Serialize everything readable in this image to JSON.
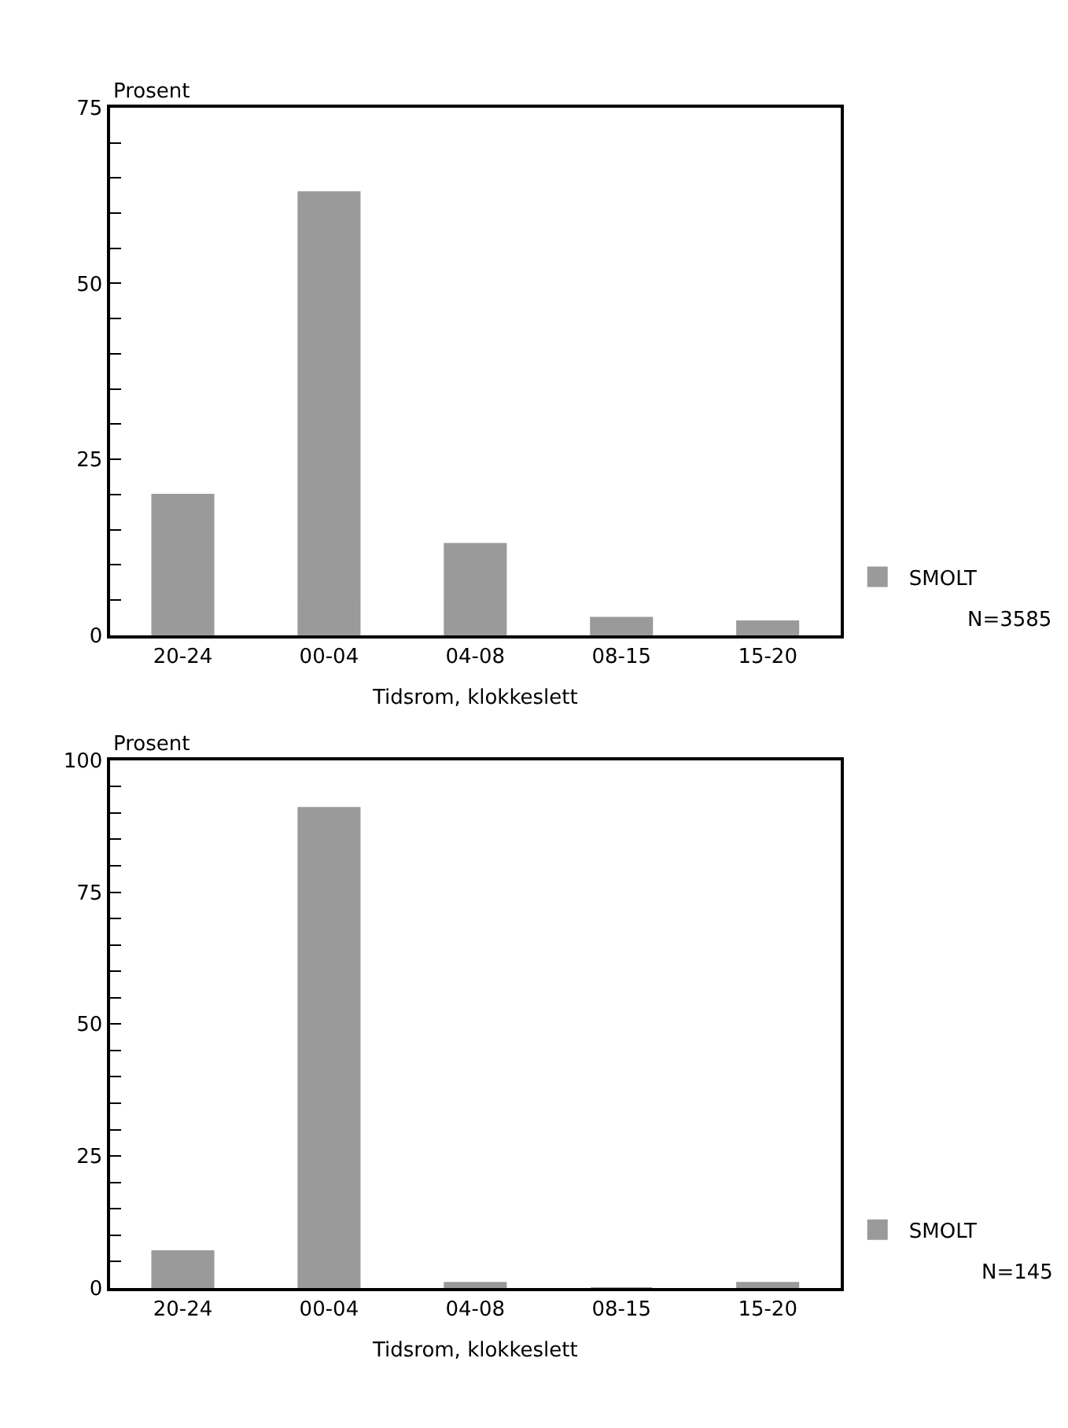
{
  "chart_data": [
    {
      "type": "bar",
      "ylabel": "Prosent",
      "xlabel": "Tidsrom, klokkeslett",
      "categories": [
        "20-24",
        "00-04",
        "04-08",
        "08-15",
        "15-20"
      ],
      "series": [
        {
          "name": "SMOLT",
          "color": "#9a9a9a",
          "values": [
            20,
            63,
            13,
            2.5,
            2
          ]
        }
      ],
      "annotations": [
        "N=3585"
      ],
      "ylim": [
        0,
        75
      ],
      "yticks": [
        0,
        {
          "value": 5,
          "label": null
        },
        {
          "value": 10,
          "label": null
        },
        {
          "value": 15,
          "label": null
        },
        {
          "value": 20,
          "label": null
        },
        25,
        {
          "value": 30,
          "label": null
        },
        {
          "value": 35,
          "label": null
        },
        {
          "value": 40,
          "label": null
        },
        {
          "value": 45,
          "label": null
        },
        50,
        {
          "value": 55,
          "label": null
        },
        {
          "value": 60,
          "label": null
        },
        {
          "value": 65,
          "label": null
        },
        {
          "value": 70,
          "label": null
        },
        75
      ],
      "legend": "bottom right"
    },
    {
      "type": "bar",
      "ylabel": "Prosent",
      "xlabel": "Tidsrom, klokkeslett",
      "categories": [
        "20-24",
        "00-04",
        "04-08",
        "08-15",
        "15-20"
      ],
      "series": [
        {
          "name": "SMOLT",
          "color": "#9a9a9a",
          "values": [
            7,
            91,
            1,
            0,
            1
          ]
        }
      ],
      "annotations": [
        "N=145"
      ],
      "ylim": [
        0,
        100
      ],
      "yticks": [
        0,
        {
          "value": 5,
          "label": null
        },
        {
          "value": 10,
          "label": null
        },
        {
          "value": 15,
          "label": null
        },
        {
          "value": 20,
          "label": null
        },
        25,
        {
          "value": 30,
          "label": null
        },
        {
          "value": 35,
          "label": null
        },
        {
          "value": 40,
          "label": null
        },
        {
          "value": 45,
          "label": null
        },
        50,
        {
          "value": 55,
          "label": null
        },
        {
          "value": 60,
          "label": null
        },
        {
          "value": 65,
          "label": null
        },
        {
          "value": 70,
          "label": null
        },
        75,
        {
          "value": 80,
          "label": null
        },
        {
          "value": 85,
          "label": null
        },
        {
          "value": 90,
          "label": null
        },
        {
          "value": 95,
          "label": null
        },
        100
      ],
      "legend": "bottom right"
    }
  ]
}
